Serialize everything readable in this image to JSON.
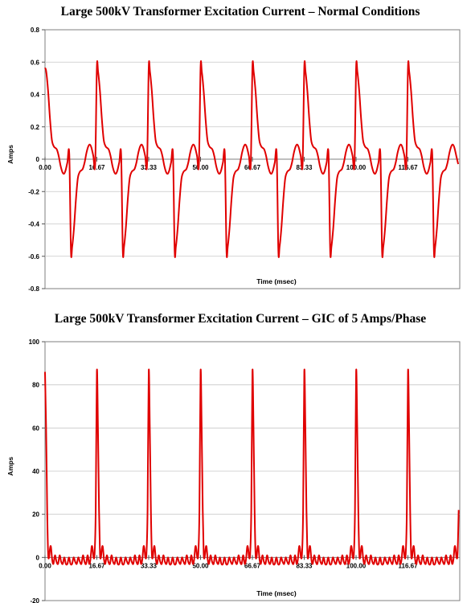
{
  "chart_data": [
    {
      "type": "line",
      "title": "Large 500kV Transformer Excitation Current – Normal Conditions",
      "xlabel": "Time (msec)",
      "ylabel": "Amps",
      "ylim": [
        -0.8,
        0.8
      ],
      "xlim": [
        0,
        133.33
      ],
      "yticks": [
        "-0.8",
        "-0.6",
        "-0.4",
        "-0.2",
        "0",
        "0.2",
        "0.4",
        "0.6",
        "0.8"
      ],
      "xtick_labels": [
        "0.00",
        "16.67",
        "33.33",
        "50.00",
        "66.67",
        "83.33",
        "100.00",
        "116.67"
      ],
      "grid": true,
      "line_color": "#e00000",
      "series": [
        {
          "period_ms": 16.67,
          "one_cycle": {
            "t": [
              0,
              0.4,
              1.0,
              1.6,
              2.2,
              2.8,
              3.3,
              3.8,
              4.4,
              5.0,
              5.6,
              6.1,
              6.6,
              7.2,
              7.8,
              8.335,
              8.735,
              9.335,
              9.935,
              10.535,
              11.135,
              11.635,
              12.135,
              12.735,
              13.335,
              13.935,
              14.435,
              14.935,
              15.535,
              16.135,
              16.67
            ],
            "y": [
              0.565,
              0.54,
              0.42,
              0.25,
              0.12,
              0.08,
              0.07,
              0.06,
              0.02,
              -0.04,
              -0.08,
              -0.09,
              -0.07,
              -0.02,
              0.03,
              -0.565,
              -0.54,
              -0.42,
              -0.25,
              -0.12,
              -0.08,
              -0.07,
              -0.06,
              -0.02,
              0.04,
              0.08,
              0.09,
              0.07,
              0.02,
              -0.03,
              0.565
            ]
          }
        }
      ]
    },
    {
      "type": "line",
      "title": "Large 500kV Transformer Excitation Current – GIC of 5 Amps/Phase",
      "xlabel": "Time (msec)",
      "ylabel": "Amps",
      "ylim": [
        -20,
        100
      ],
      "xlim": [
        0,
        133.33
      ],
      "yticks": [
        "-20",
        "0",
        "20",
        "40",
        "60",
        "80",
        "100"
      ],
      "xtick_labels": [
        "0.00",
        "16.67",
        "33.33",
        "50.00",
        "66.67",
        "83.33",
        "100.00",
        "116.67"
      ],
      "grid": true,
      "line_color": "#e00000",
      "series": [
        {
          "period_ms": 16.67,
          "one_cycle": {
            "t": [
              0,
              0.35,
              0.7,
              1.0,
              1.3,
              1.6,
              1.9,
              2.3,
              2.7,
              3.2,
              3.7,
              4.2,
              4.7,
              5.2,
              5.7,
              6.2,
              6.7,
              7.2,
              7.7,
              8.2,
              8.7,
              9.2,
              9.7,
              10.2,
              10.7,
              11.2,
              11.7,
              12.2,
              12.7,
              13.2,
              13.7,
              14.2,
              14.6,
              15.0,
              15.3,
              15.6,
              15.95,
              16.3,
              16.67
            ],
            "y": [
              86,
              60,
              22,
              2,
              0,
              4,
              5,
              -1,
              -3,
              1,
              -2,
              -3,
              1,
              -2,
              -3,
              0,
              -3,
              -3,
              0,
              -3,
              -3,
              0,
              -2,
              -3,
              0,
              -2,
              -3,
              1,
              -2,
              -3,
              1,
              -3,
              -1,
              5,
              4,
              0,
              2,
              22,
              86
            ]
          }
        }
      ]
    }
  ]
}
